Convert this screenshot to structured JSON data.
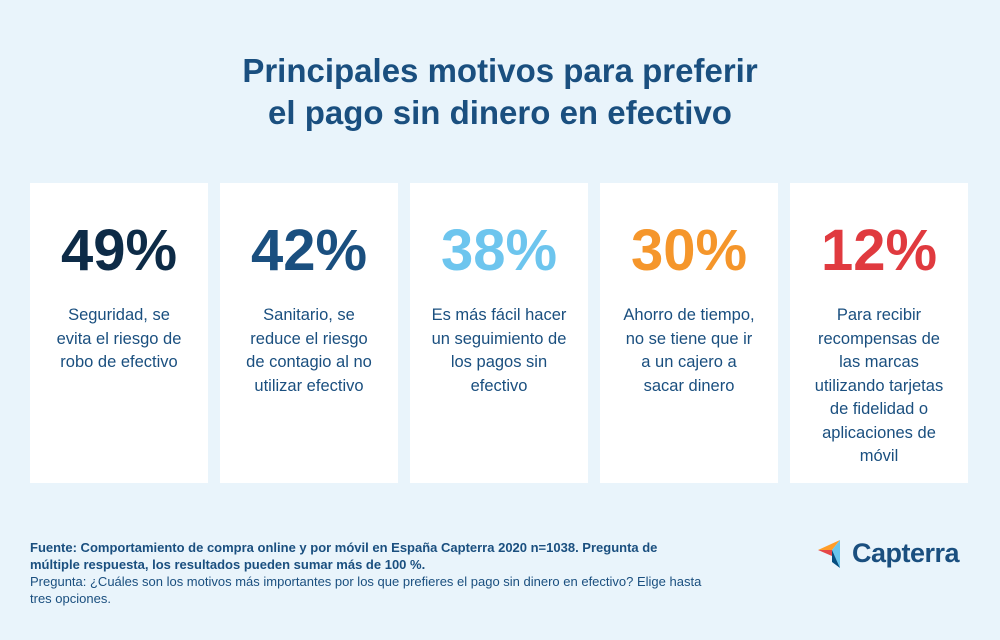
{
  "header": {
    "title_lines": [
      "Principales motivos para preferir",
      "el pago sin dinero en efectivo"
    ]
  },
  "cards": [
    {
      "percent": "49%",
      "text": "Seguridad, se evita el riesgo de robo de efectivo",
      "color": "#0d2b47"
    },
    {
      "percent": "42%",
      "text": "Sanitario, se reduce el riesgo de contagio al no utilizar efectivo",
      "color": "#1a4f7f"
    },
    {
      "percent": "38%",
      "text": "Es más fácil hacer un seguimiento de los pagos sin efectivo",
      "color": "#6dc5ee"
    },
    {
      "percent": "30%",
      "text": "Ahorro de tiempo, no se tiene que ir a un cajero a sacar dinero",
      "color": "#f5962b"
    },
    {
      "percent": "12%",
      "text": "Para recibir recompensas de las marcas utilizando tarjetas de fidelidad o aplicaciones de móvil",
      "color": "#e03a3f"
    }
  ],
  "footer": {
    "source": "Fuente: Comportamiento de compra online y por móvil en España Capterra 2020 n=1038. Pregunta de múltiple respuesta, los resultados pueden sumar más de 100 %.",
    "question": "Pregunta: ¿Cuáles son los motivos más importantes por los que prefieres el pago sin dinero en efectivo? Elige hasta tres opciones."
  },
  "logo": {
    "text": "Capterra"
  }
}
